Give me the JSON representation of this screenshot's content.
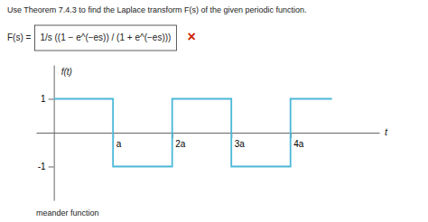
{
  "chart_data": {
    "type": "line",
    "title": "Use Theorem 7.4.3 to find the Laplace transform F(s) of the given periodic function.",
    "subtitle": "meander function",
    "annotations": [
      {
        "text": "F(s) ="
      },
      {
        "text": "1/s ((1 − e^(−es)) / (1 + e^(−es)))"
      },
      {
        "text": "×",
        "color": "#cc2200"
      }
    ],
    "x": [
      0,
      1,
      1,
      2,
      2,
      3,
      3,
      4,
      4,
      4.7
    ],
    "values": [
      1,
      1,
      -1,
      -1,
      1,
      1,
      -1,
      -1,
      1,
      1
    ],
    "color": "#4ab8d8",
    "xlim": [
      -0.3,
      5.5
    ],
    "ylim": [
      -2.0,
      2.0
    ],
    "xticks": [
      {
        "value": 1,
        "label": "a"
      },
      {
        "value": 2,
        "label": "2a"
      },
      {
        "value": 3,
        "label": "3a"
      },
      {
        "value": 4,
        "label": "4a"
      }
    ],
    "yticks": [
      1,
      -1
    ],
    "xlabel": "t",
    "ylabel": "f(t)"
  }
}
